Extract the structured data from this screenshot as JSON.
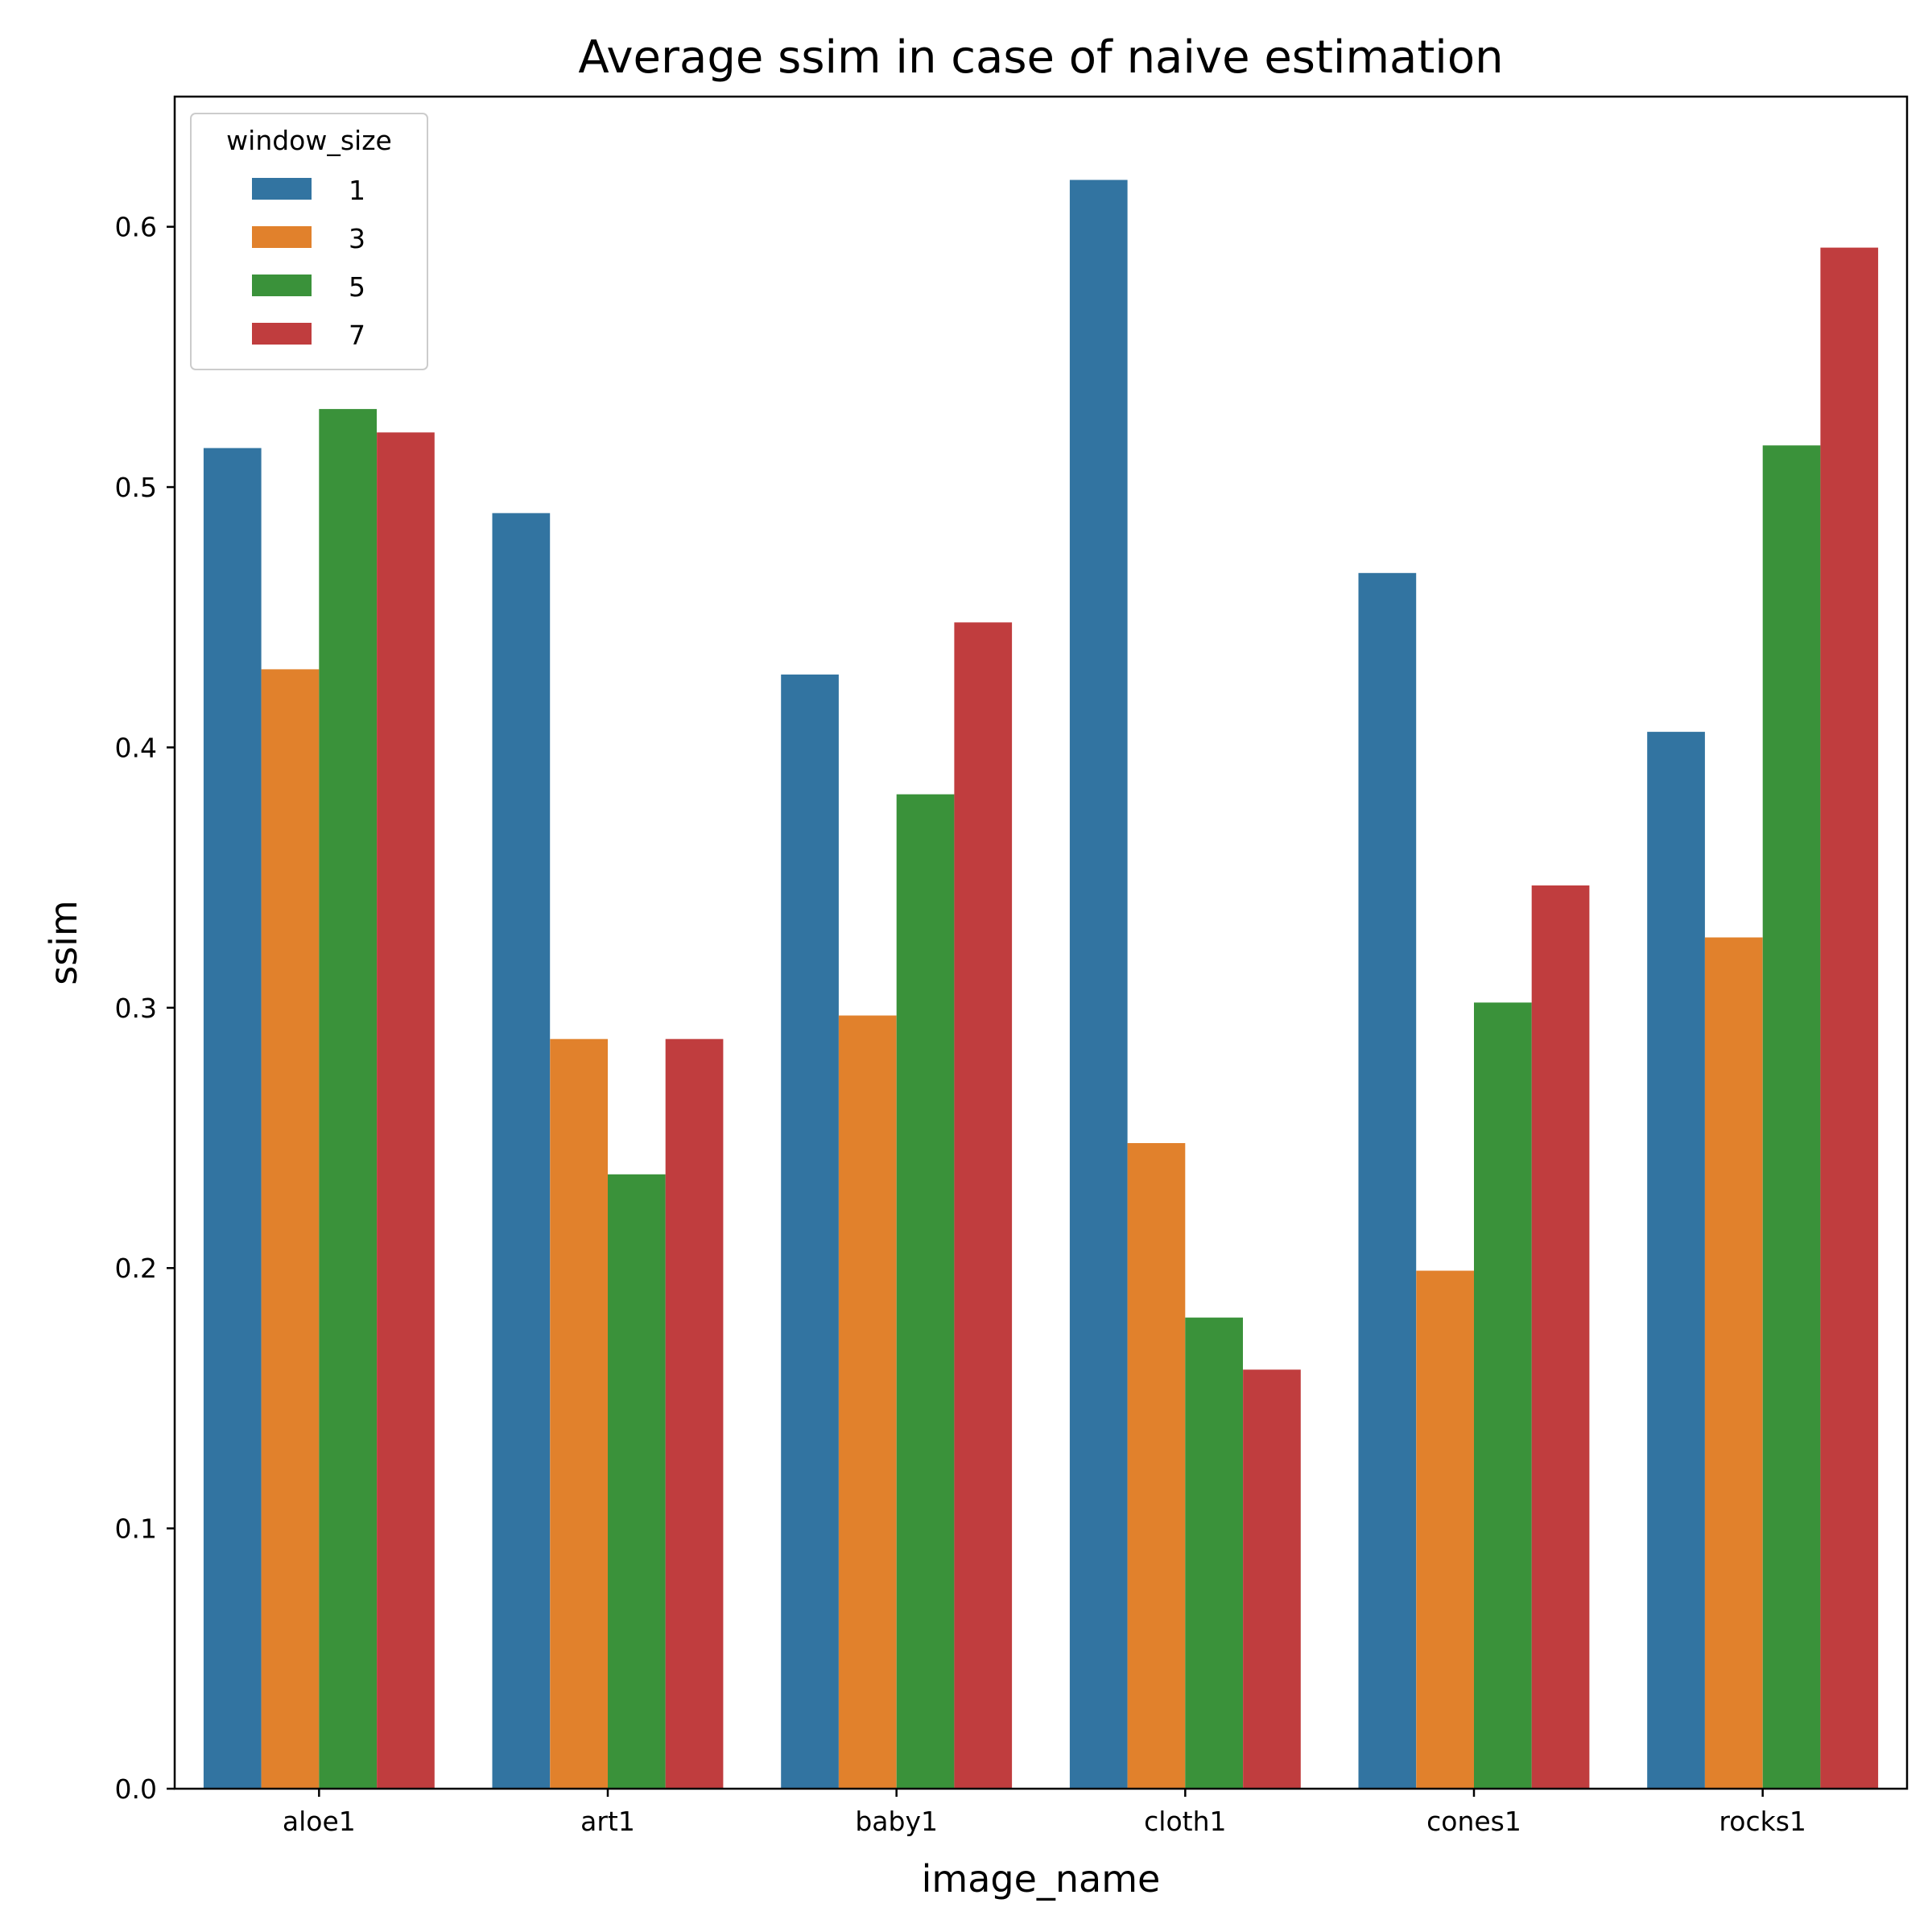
{
  "chart_data": {
    "type": "bar",
    "title": "Average ssim in case of naive estimation",
    "xlabel": "image_name",
    "ylabel": "ssim",
    "categories": [
      "aloe1",
      "art1",
      "baby1",
      "cloth1",
      "cones1",
      "rocks1"
    ],
    "ylim": [
      0,
      0.65
    ],
    "yticks": [
      0.0,
      0.1,
      0.2,
      0.3,
      0.4,
      0.5,
      0.6
    ],
    "ytick_labels": [
      "0.0",
      "0.1",
      "0.2",
      "0.3",
      "0.4",
      "0.5",
      "0.6"
    ],
    "grid": false,
    "legend": {
      "title": "window_size",
      "position": "top-left"
    },
    "series": [
      {
        "name": "1",
        "color": "#3274a1",
        "values": [
          0.515,
          0.49,
          0.428,
          0.618,
          0.467,
          0.406
        ]
      },
      {
        "name": "3",
        "color": "#e1812c",
        "values": [
          0.43,
          0.288,
          0.297,
          0.248,
          0.199,
          0.327
        ]
      },
      {
        "name": "5",
        "color": "#3a923a",
        "values": [
          0.53,
          0.236,
          0.382,
          0.181,
          0.302,
          0.516
        ]
      },
      {
        "name": "7",
        "color": "#c03d3e",
        "values": [
          0.521,
          0.288,
          0.448,
          0.161,
          0.347,
          0.592
        ]
      }
    ]
  }
}
